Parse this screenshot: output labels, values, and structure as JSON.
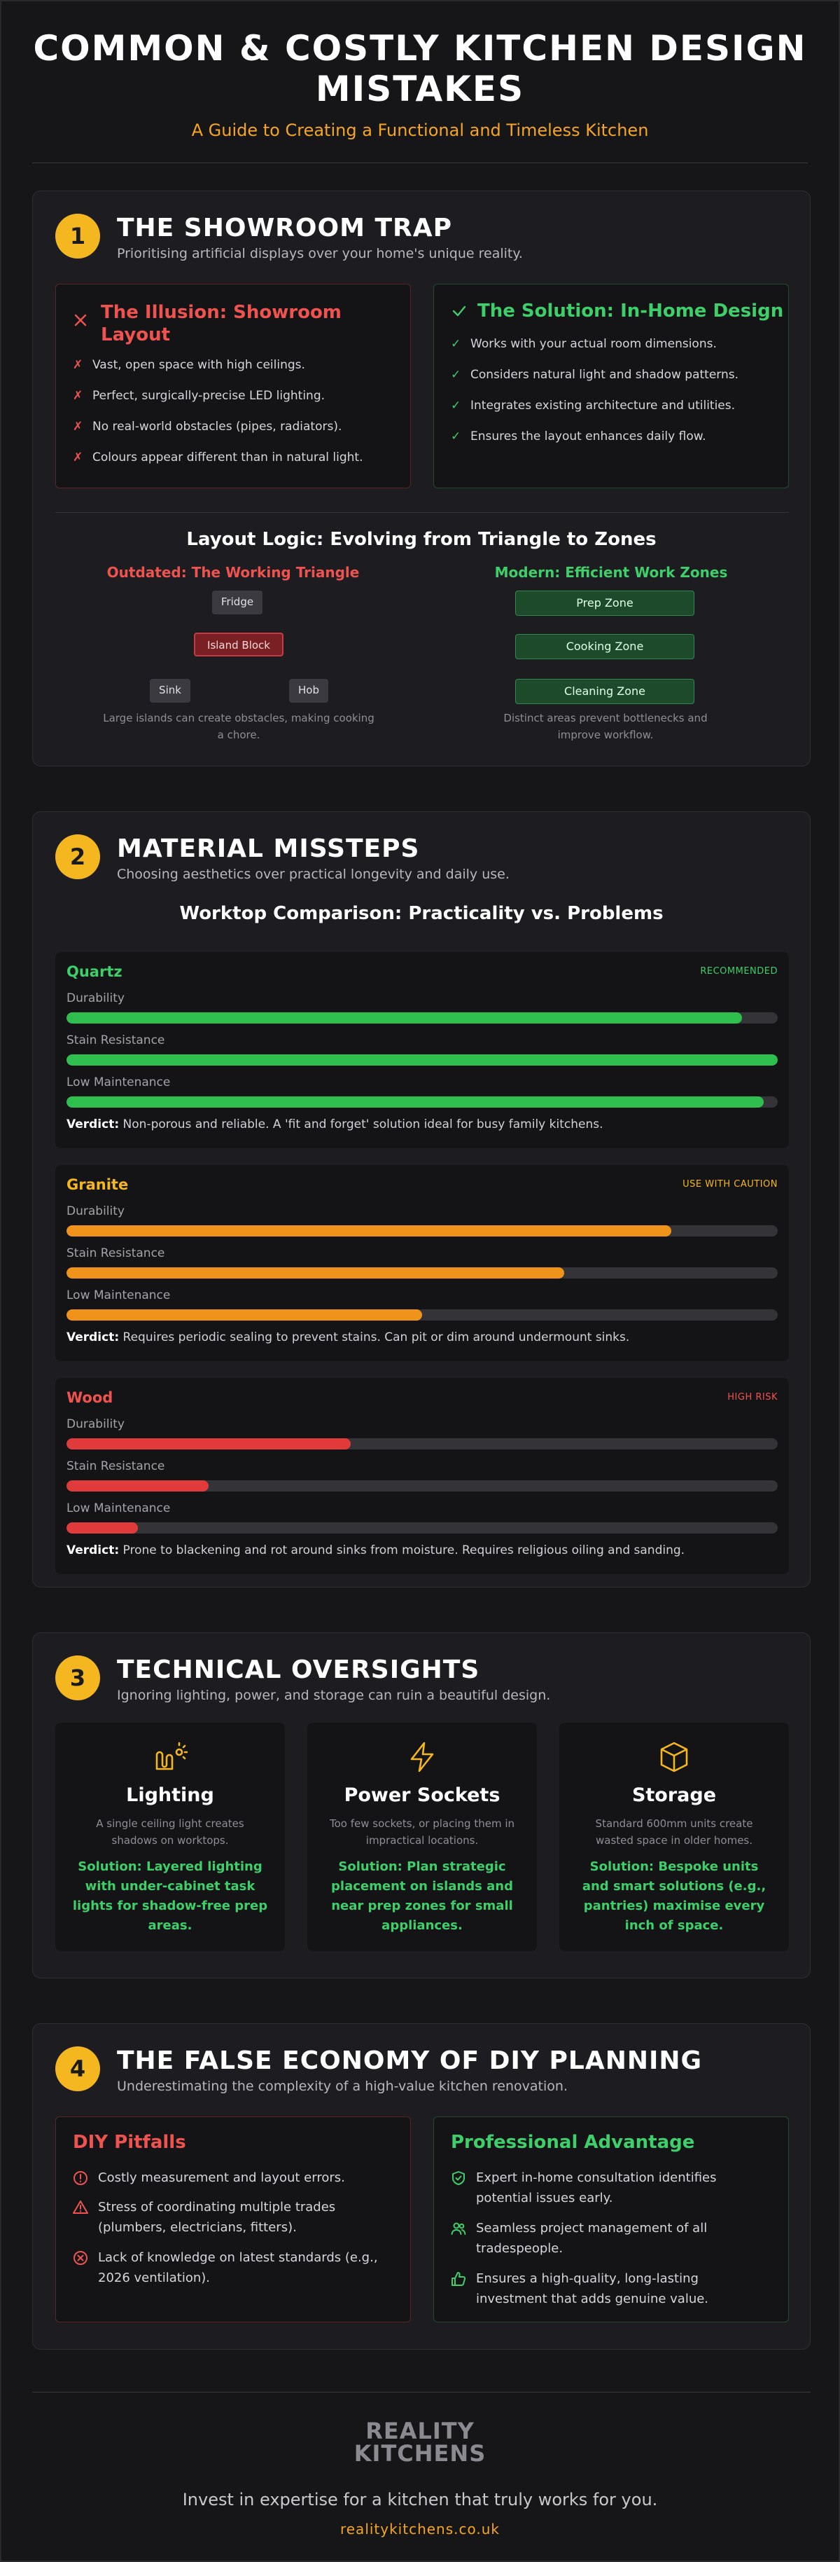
{
  "header": {
    "title": "COMMON & COSTLY KITCHEN DESIGN MISTAKES",
    "subtitle": "A Guide to Creating a Functional and Timeless Kitchen"
  },
  "section1": {
    "number": "1",
    "title": "THE SHOWROOM TRAP",
    "subtitle": "Prioritising artificial displays over your home's unique reality.",
    "illusion": {
      "title": "The Illusion: Showroom Layout",
      "items": [
        "Vast, open space with high ceilings.",
        "Perfect, surgically-precise LED lighting.",
        "No real-world obstacles (pipes, radiators).",
        "Colours appear different than in natural light."
      ]
    },
    "solution": {
      "title": "The Solution: In-Home Design",
      "items": [
        "Works with your actual room dimensions.",
        "Considers natural light and shadow patterns.",
        "Integrates existing architecture and utilities.",
        "Ensures the layout enhances daily flow."
      ]
    },
    "logic": {
      "title": "Layout Logic: Evolving from Triangle to Zones",
      "outdated_title": "Outdated: The Working Triangle",
      "modern_title": "Modern: Efficient Work Zones",
      "fridge": "Fridge",
      "island": "Island Block",
      "sink": "Sink",
      "hob": "Hob",
      "zones": [
        "Prep Zone",
        "Cooking Zone",
        "Cleaning Zone"
      ],
      "outdated_caption": "Large islands can create obstacles, making cooking a chore.",
      "modern_caption": "Distinct areas prevent bottlenecks and improve workflow."
    }
  },
  "section2": {
    "number": "2",
    "title": "MATERIAL MISSTEPS",
    "subtitle": "Choosing aesthetics over practical longevity and daily use.",
    "comparison_title": "Worktop Comparison: Practicality vs. Problems",
    "metric_labels": [
      "Durability",
      "Stain Resistance",
      "Low Maintenance"
    ],
    "verdict_label": "Verdict:",
    "worktops": [
      {
        "name": "Quartz",
        "tag": "RECOMMENDED",
        "color": "#2fbf4f",
        "name_color": "#3ecf6a",
        "levels": [
          0.95,
          1.0,
          0.98
        ],
        "verdict": "Non-porous and reliable. A 'fit and forget' solution ideal for busy family kitchens."
      },
      {
        "name": "Granite",
        "tag": "USE WITH CAUTION",
        "color": "#f0931a",
        "name_color": "#f5b71f",
        "levels": [
          0.85,
          0.7,
          0.5
        ],
        "verdict": "Requires periodic sealing to prevent stains. Can pit or dim around undermount sinks."
      },
      {
        "name": "Wood",
        "tag": "HIGH RISK",
        "color": "#e03a3a",
        "name_color": "#ef5350",
        "levels": [
          0.4,
          0.2,
          0.1
        ],
        "verdict": "Prone to blackening and rot around sinks from moisture. Requires religious oiling and sanding."
      }
    ]
  },
  "section3": {
    "number": "3",
    "title": "TECHNICAL OVERSIGHTS",
    "subtitle": "Ignoring lighting, power, and storage can ruin a beautiful design.",
    "cards": [
      {
        "icon": "lighting-icon",
        "title": "Lighting",
        "desc": "A single ceiling light creates shadows on worktops.",
        "solution": "Solution: Layered lighting with under-cabinet task lights for shadow-free prep areas."
      },
      {
        "icon": "lightning-bolt-icon",
        "title": "Power Sockets",
        "desc": "Too few sockets, or placing them in impractical locations.",
        "solution": "Solution: Plan strategic placement on islands and near prep zones for small appliances."
      },
      {
        "icon": "box-icon",
        "title": "Storage",
        "desc": "Standard 600mm units create wasted space in older homes.",
        "solution": "Solution: Bespoke units and smart solutions (e.g., pantries) maximise every inch of space."
      }
    ]
  },
  "section4": {
    "number": "4",
    "title": "THE FALSE ECONOMY OF DIY PLANNING",
    "subtitle": "Underestimating the complexity of a high-value kitchen renovation.",
    "pitfalls": {
      "title": "DIY Pitfalls",
      "items": [
        "Costly measurement and layout errors.",
        "Stress of coordinating multiple trades (plumbers, electricians, fitters).",
        "Lack of knowledge on latest standards (e.g., 2026 ventilation)."
      ]
    },
    "advantage": {
      "title": "Professional Advantage",
      "items": [
        "Expert in-home consultation identifies potential issues early.",
        "Seamless project management of all tradespeople.",
        "Ensures a high-quality, long-lasting investment that adds genuine value."
      ]
    }
  },
  "footer": {
    "logo_line1": "REALITY",
    "logo_line2": "KITCHENS",
    "tagline": "Invest in expertise for a kitchen that truly works for you.",
    "website": "realitykitchens.co.uk"
  }
}
